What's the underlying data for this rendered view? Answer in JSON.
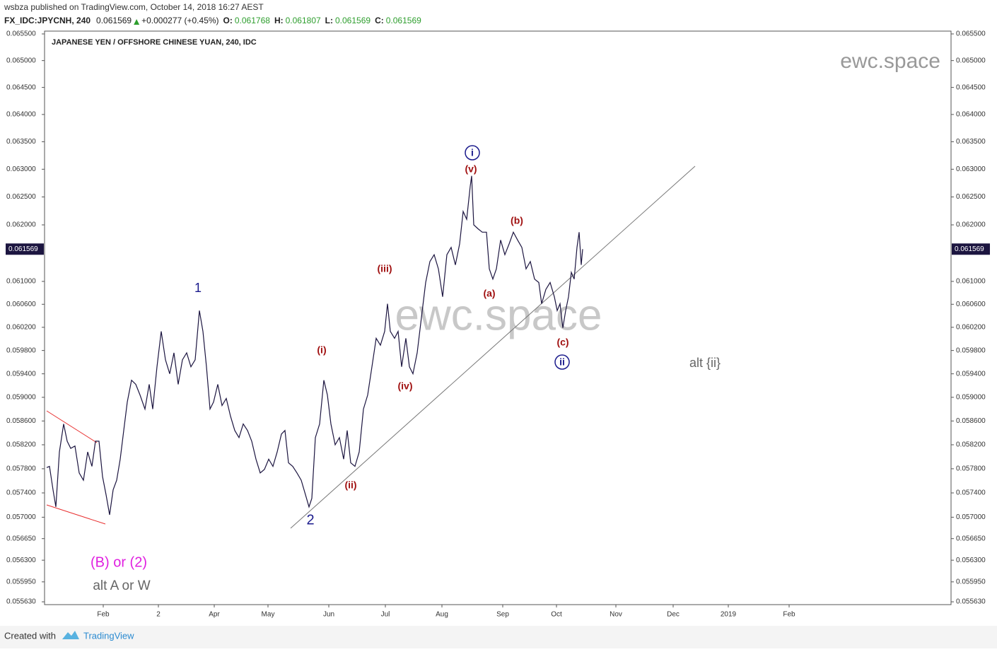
{
  "header": {
    "published": "wsbza published on TradingView.com, October 14, 2018 16:27 AEST",
    "symbol": "FX_IDC:JPYCNH, 240",
    "last": "0.061569",
    "change": "+0.000277 (+0.45%)",
    "ohlc": [
      {
        "key": "O:",
        "value": "0.061768"
      },
      {
        "key": "H:",
        "value": "0.061807"
      },
      {
        "key": "L:",
        "value": "0.061569"
      },
      {
        "key": "C:",
        "value": "0.061569"
      }
    ]
  },
  "footer": {
    "created": "Created with",
    "brand": "TradingView"
  },
  "chart_data": {
    "type": "line",
    "title": "JAPANESE YEN / OFFSHORE CHINESE YUAN, 240, IDC",
    "watermark": "ewc.space",
    "color": "#1c1540",
    "log_scale": true,
    "last_price": 0.061569,
    "xlim": [
      0,
      1282
    ],
    "xticks": [
      {
        "value": 83,
        "label": "Feb"
      },
      {
        "value": 161,
        "label": "2"
      },
      {
        "value": 240,
        "label": "Apr"
      },
      {
        "value": 316,
        "label": "May"
      },
      {
        "value": 402,
        "label": "Jun"
      },
      {
        "value": 482,
        "label": "Jul"
      },
      {
        "value": 562,
        "label": "Aug"
      },
      {
        "value": 648,
        "label": "Sep"
      },
      {
        "value": 724,
        "label": "Oct"
      },
      {
        "value": 808,
        "label": "Nov"
      },
      {
        "value": 889,
        "label": "Dec"
      },
      {
        "value": 967,
        "label": "2019"
      },
      {
        "value": 1053,
        "label": "Feb"
      }
    ],
    "ylim": [
      0.055585,
      0.065553
    ],
    "yticks": [
      {
        "value": 0.0655,
        "label": "0.065500"
      },
      {
        "value": 0.065,
        "label": "0.065000"
      },
      {
        "value": 0.0645,
        "label": "0.064500"
      },
      {
        "value": 0.064,
        "label": "0.064000"
      },
      {
        "value": 0.0635,
        "label": "0.063500"
      },
      {
        "value": 0.063,
        "label": "0.063000"
      },
      {
        "value": 0.0625,
        "label": "0.062500"
      },
      {
        "value": 0.062,
        "label": "0.062000"
      },
      {
        "value": 0.061,
        "label": "0.061000"
      },
      {
        "value": 0.0606,
        "label": "0.060600"
      },
      {
        "value": 0.0602,
        "label": "0.060200"
      },
      {
        "value": 0.0598,
        "label": "0.059800"
      },
      {
        "value": 0.0594,
        "label": "0.059400"
      },
      {
        "value": 0.059,
        "label": "0.059000"
      },
      {
        "value": 0.0586,
        "label": "0.058600"
      },
      {
        "value": 0.0582,
        "label": "0.058200"
      },
      {
        "value": 0.0578,
        "label": "0.057800"
      },
      {
        "value": 0.0574,
        "label": "0.057400"
      },
      {
        "value": 0.057,
        "label": "0.057000"
      },
      {
        "value": 0.05665,
        "label": "0.056650"
      },
      {
        "value": 0.0563,
        "label": "0.056300"
      },
      {
        "value": 0.05595,
        "label": "0.055950"
      },
      {
        "value": 0.05563,
        "label": "0.055630"
      }
    ],
    "x": [
      3,
      7,
      12,
      16,
      21,
      27,
      32,
      37,
      43,
      49,
      55,
      61,
      67,
      72,
      77,
      82,
      87,
      92,
      97,
      102,
      107,
      112,
      117,
      123,
      129,
      135,
      142,
      148,
      153,
      159,
      165,
      171,
      177,
      183,
      189,
      195,
      201,
      207,
      213,
      219,
      224,
      229,
      234,
      239,
      245,
      251,
      257,
      263,
      269,
      275,
      281,
      287,
      293,
      299,
      305,
      311,
      317,
      323,
      329,
      335,
      340,
      345,
      351,
      357,
      363,
      369,
      374,
      378,
      383,
      389,
      395,
      400,
      405,
      411,
      417,
      423,
      428,
      433,
      439,
      445,
      451,
      457,
      463,
      469,
      475,
      481,
      485,
      489,
      495,
      500,
      505,
      511,
      516,
      521,
      527,
      533,
      539,
      545,
      551,
      557,
      563,
      569,
      575,
      581,
      587,
      592,
      597,
      602,
      604,
      607,
      613,
      619,
      625,
      629,
      634,
      639,
      645,
      651,
      657,
      663,
      669,
      675,
      681,
      687,
      693,
      699,
      703,
      709,
      715,
      721,
      725,
      729,
      733,
      737,
      741,
      745,
      749,
      753,
      756,
      759,
      761
    ],
    "values": [
      0.05782,
      0.05784,
      0.05745,
      0.05717,
      0.05808,
      0.05855,
      0.05826,
      0.05814,
      0.05818,
      0.05773,
      0.05761,
      0.05808,
      0.05784,
      0.05826,
      0.05826,
      0.05767,
      0.05737,
      0.05704,
      0.05745,
      0.05761,
      0.05796,
      0.05844,
      0.05892,
      0.05929,
      0.05922,
      0.05904,
      0.0588,
      0.05922,
      0.0588,
      0.05952,
      0.06013,
      0.05964,
      0.0594,
      0.05976,
      0.05922,
      0.05964,
      0.05976,
      0.05952,
      0.05964,
      0.06049,
      0.06013,
      0.05952,
      0.0588,
      0.05892,
      0.05922,
      0.05886,
      0.05898,
      0.05868,
      0.05844,
      0.05832,
      0.05855,
      0.05844,
      0.05826,
      0.05796,
      0.05773,
      0.05779,
      0.05796,
      0.05784,
      0.05808,
      0.05838,
      0.05844,
      0.0579,
      0.05784,
      0.05773,
      0.05761,
      0.05737,
      0.05717,
      0.05731,
      0.05832,
      0.05855,
      0.05929,
      0.05904,
      0.05855,
      0.0582,
      0.05832,
      0.05796,
      0.05844,
      0.0579,
      0.05784,
      0.05808,
      0.0588,
      0.05904,
      0.05952,
      0.06001,
      0.05989,
      0.06013,
      0.06061,
      0.06013,
      0.06001,
      0.06013,
      0.05952,
      0.06001,
      0.05952,
      0.0594,
      0.05976,
      0.06037,
      0.06098,
      0.06135,
      0.06147,
      0.06122,
      0.06073,
      0.06147,
      0.0616,
      0.06129,
      0.06166,
      0.06224,
      0.0621,
      0.06269,
      0.06288,
      0.062,
      0.06193,
      0.06187,
      0.06187,
      0.06122,
      0.06104,
      0.06122,
      0.06173,
      0.06147,
      0.06166,
      0.06187,
      0.06173,
      0.0616,
      0.06122,
      0.06135,
      0.06104,
      0.06098,
      0.06061,
      0.06086,
      0.06098,
      0.06073,
      0.06049,
      0.06061,
      0.06019,
      0.06049,
      0.06073,
      0.06116,
      0.06104,
      0.0616,
      0.06187,
      0.06129,
      0.061569
    ],
    "annotations": [
      {
        "text": "1",
        "color": "#1a1a8c"
      },
      {
        "text": "2",
        "color": "#1a1a8c"
      },
      {
        "text": "(i)",
        "color": "#a01010"
      },
      {
        "text": "(ii)",
        "color": "#a01010"
      },
      {
        "text": "(iii)",
        "color": "#a01010"
      },
      {
        "text": "(iv)",
        "color": "#a01010"
      },
      {
        "text": "(v)",
        "color": "#a01010"
      },
      {
        "text": "i",
        "color": "#1a1a8c"
      },
      {
        "text": "(a)",
        "color": "#a01010"
      },
      {
        "text": "(b)",
        "color": "#a01010"
      },
      {
        "text": "(c)",
        "color": "#a01010"
      },
      {
        "text": "ii",
        "color": "#1a1a8c"
      },
      {
        "text": "alt {ii}",
        "color": "#666666"
      },
      {
        "text": "(B) or (2)",
        "color": "#e020e0"
      },
      {
        "text": "alt A or W",
        "color": "#666666"
      }
    ]
  }
}
